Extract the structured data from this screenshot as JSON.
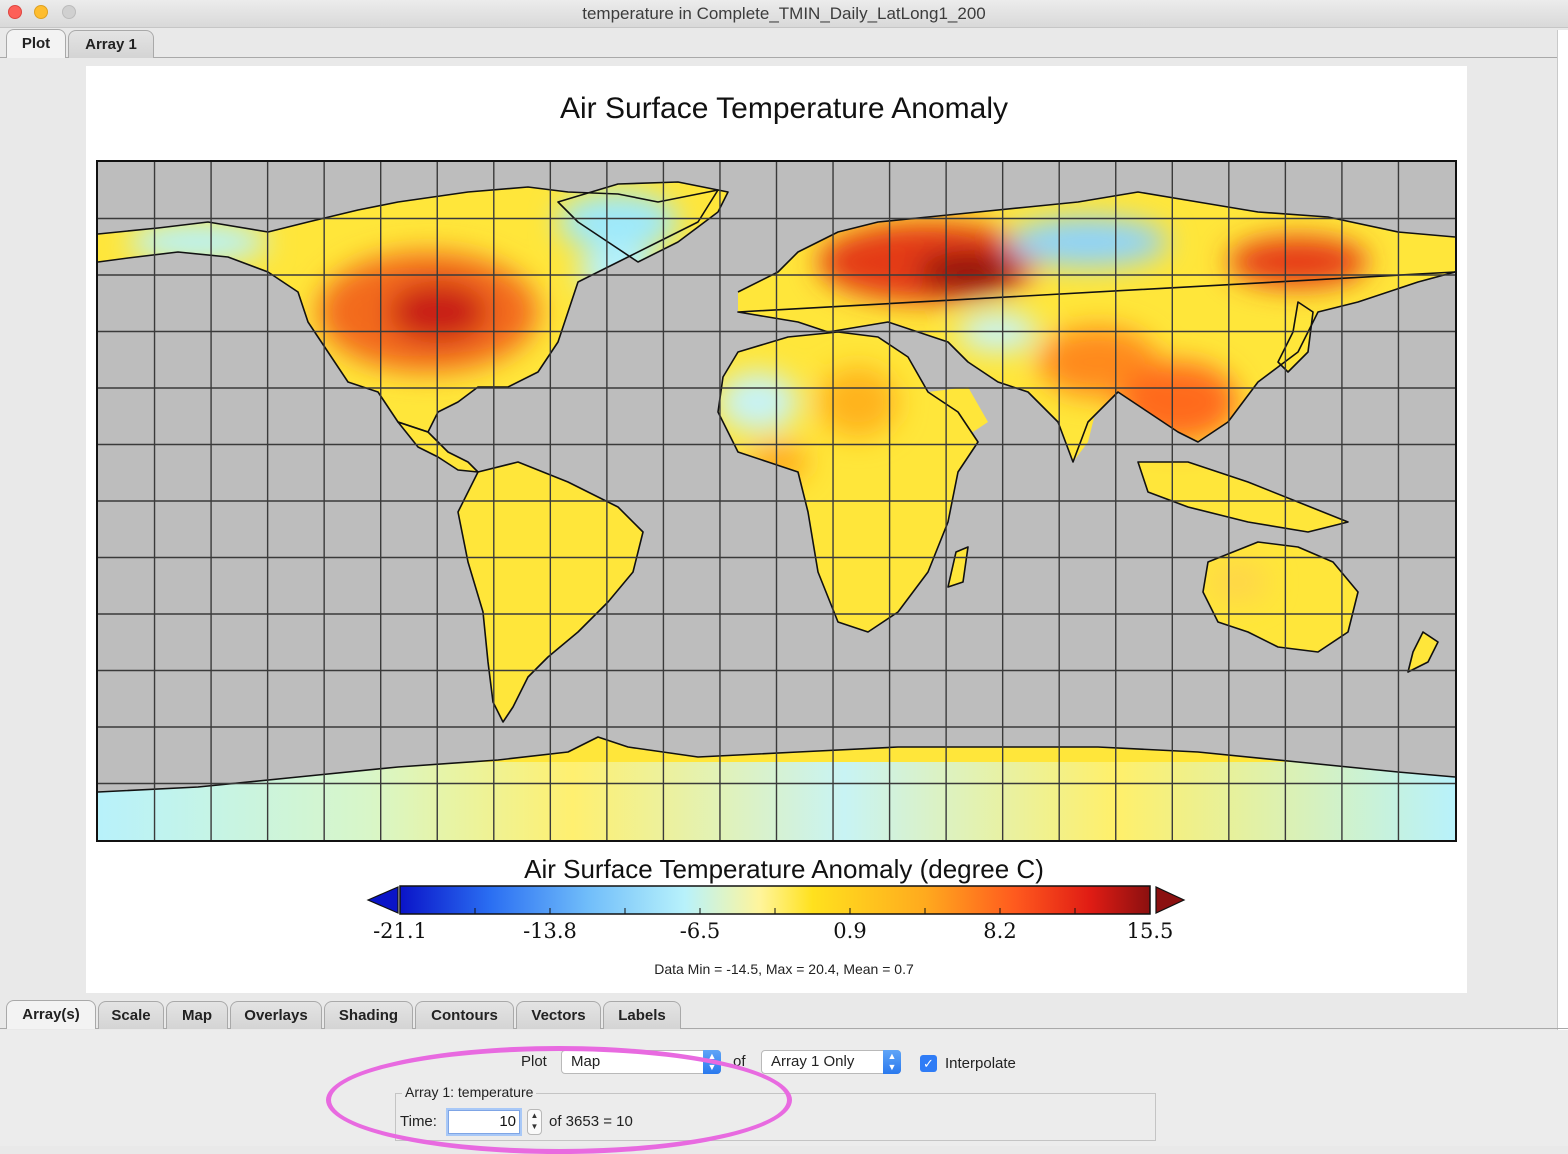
{
  "window": {
    "title": "temperature in Complete_TMIN_Daily_LatLong1_200"
  },
  "top_tabs": [
    {
      "label": "Plot",
      "active": true
    },
    {
      "label": "Array 1",
      "active": false
    }
  ],
  "plot": {
    "title": "Air Surface Temperature Anomaly",
    "colorbar": {
      "title": "Air Surface Temperature Anomaly (degree C)",
      "ticks": [
        "-21.1",
        "-13.8",
        "-6.5",
        "0.9",
        "8.2",
        "15.5"
      ],
      "colors": [
        "#0a14c8",
        "#2a6ef2",
        "#70bdfa",
        "#b8f2fb",
        "#fff59b",
        "#ffe11e",
        "#ffaa1e",
        "#ff5a1e",
        "#e01c14",
        "#8b1010"
      ]
    },
    "summary": "Data Min = -14.5, Max = 20.4, Mean = 0.7"
  },
  "bottom_tabs": [
    {
      "label": "Array(s)",
      "active": true
    },
    {
      "label": "Scale",
      "active": false
    },
    {
      "label": "Map",
      "active": false
    },
    {
      "label": "Overlays",
      "active": false
    },
    {
      "label": "Shading",
      "active": false
    },
    {
      "label": "Contours",
      "active": false
    },
    {
      "label": "Vectors",
      "active": false
    },
    {
      "label": "Labels",
      "active": false
    }
  ],
  "controls": {
    "plot_label": "Plot",
    "plot_type": "Map",
    "of_label": "of",
    "array_mode": "Array 1 Only",
    "interpolate_label": "Interpolate",
    "interpolate_checked": true,
    "array_group_label": "Array 1: temperature",
    "time_label": "Time:",
    "time_value": "10",
    "time_of_label": "of 3653 = 10"
  }
}
